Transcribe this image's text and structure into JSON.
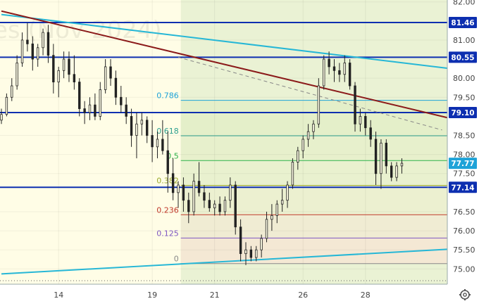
{
  "chart_data": {
    "type": "candlestick",
    "watermark": "es (Nov 2024)",
    "y_ticks": [
      "82.00",
      "81.00",
      "80.00",
      "79.50",
      "78.50",
      "78.00",
      "77.50",
      "76.50",
      "76.00",
      "75.50",
      "75.00"
    ],
    "y_tick_values": [
      82.0,
      81.0,
      80.0,
      79.5,
      78.5,
      78.0,
      77.5,
      76.5,
      76.0,
      75.5,
      75.0
    ],
    "x_ticks": [
      "14",
      "19",
      "21",
      "26",
      "28"
    ],
    "x_tick_index": [
      11,
      29,
      41,
      58,
      70
    ],
    "index_range": [
      0,
      81
    ],
    "ylim": [
      74.6,
      82.05
    ],
    "price_badges": [
      {
        "label": "81.46",
        "value": 81.46,
        "color": "#0d2fb0"
      },
      {
        "label": "80.55",
        "value": 80.55,
        "color": "#0d2fb0"
      },
      {
        "label": "79.10",
        "value": 79.1,
        "color": "#0d2fb0"
      },
      {
        "label": "77.77",
        "value": 77.77,
        "color": "#1ea3d8"
      },
      {
        "label": "77.14",
        "value": 77.14,
        "color": "#0d2fb0"
      }
    ],
    "fibonacci": {
      "levels": [
        {
          "label": "0.786",
          "value": 79.42,
          "color": "#1ea3d8"
        },
        {
          "label": "0.618",
          "value": 78.49,
          "color": "#2e9f8f"
        },
        {
          "label": "0.5",
          "value": 77.84,
          "color": "#2db34a"
        },
        {
          "label": "0.382",
          "value": 77.19,
          "color": "#9aa82a"
        },
        {
          "label": "0.236",
          "value": 76.42,
          "color": "#c0392b"
        },
        {
          "label": "0.125",
          "value": 75.81,
          "color": "#7e57c2"
        },
        {
          "label": "0",
          "value": 75.14,
          "color": "#888888"
        }
      ],
      "start_index": 34.5
    },
    "horizontal_lines": [
      81.46,
      80.55,
      79.1,
      77.14
    ],
    "trendlines": [
      {
        "name": "cyan-upper",
        "color": "#26b7d6",
        "points": [
          [
            0,
            81.67
          ],
          [
            81,
            80.34
          ]
        ]
      },
      {
        "name": "cyan-lower",
        "color": "#26b7d6",
        "points": [
          [
            0,
            74.87
          ],
          [
            81,
            75.48
          ]
        ]
      },
      {
        "name": "resistance",
        "color": "#8b1a1a",
        "points": [
          [
            0,
            81.76
          ],
          [
            81,
            79.12
          ]
        ]
      },
      {
        "name": "dashed-extension",
        "color": "#888888",
        "dashed": true,
        "points": [
          [
            34,
            80.55
          ],
          [
            80,
            78.82
          ]
        ]
      }
    ],
    "candles": [
      [
        78.9,
        79.2,
        78.8,
        79.05
      ],
      [
        79.05,
        79.6,
        79.0,
        79.5
      ],
      [
        79.5,
        80.0,
        79.4,
        79.8
      ],
      [
        79.8,
        80.6,
        79.7,
        80.4
      ],
      [
        80.4,
        81.2,
        80.3,
        81.0
      ],
      [
        81.0,
        81.45,
        80.7,
        80.9
      ],
      [
        80.9,
        81.1,
        80.2,
        80.5
      ],
      [
        80.5,
        80.9,
        80.3,
        80.8
      ],
      [
        80.8,
        81.3,
        80.6,
        81.2
      ],
      [
        81.2,
        81.4,
        80.4,
        80.6
      ],
      [
        80.6,
        80.9,
        79.6,
        79.9
      ],
      [
        79.9,
        80.3,
        79.5,
        80.2
      ],
      [
        80.2,
        80.7,
        80.0,
        80.5
      ],
      [
        80.5,
        80.7,
        79.9,
        80.1
      ],
      [
        80.1,
        80.6,
        79.7,
        79.9
      ],
      [
        79.9,
        80.0,
        79.0,
        79.2
      ],
      [
        79.2,
        79.4,
        78.8,
        79.1
      ],
      [
        79.1,
        79.5,
        78.9,
        79.3
      ],
      [
        79.3,
        79.6,
        78.9,
        79.0
      ],
      [
        79.0,
        79.9,
        78.9,
        79.7
      ],
      [
        79.7,
        80.5,
        79.6,
        80.3
      ],
      [
        80.3,
        80.5,
        79.8,
        80.0
      ],
      [
        80.0,
        80.2,
        79.3,
        79.5
      ],
      [
        79.5,
        79.8,
        79.1,
        79.3
      ],
      [
        79.3,
        79.5,
        78.8,
        79.0
      ],
      [
        79.0,
        79.2,
        78.2,
        78.5
      ],
      [
        78.5,
        79.1,
        77.9,
        78.8
      ],
      [
        78.8,
        79.1,
        78.5,
        78.9
      ],
      [
        78.9,
        79.0,
        78.3,
        78.5
      ],
      [
        78.5,
        78.9,
        77.8,
        78.2
      ],
      [
        78.2,
        78.6,
        77.9,
        78.4
      ],
      [
        78.4,
        78.9,
        78.0,
        78.1
      ],
      [
        78.1,
        78.6,
        77.0,
        77.5
      ],
      [
        77.5,
        77.9,
        76.8,
        77.0
      ],
      [
        77.0,
        77.3,
        76.6,
        77.2
      ],
      [
        77.2,
        77.4,
        76.5,
        76.8
      ],
      [
        76.8,
        77.0,
        76.2,
        76.5
      ],
      [
        76.5,
        77.5,
        76.4,
        77.3
      ],
      [
        77.3,
        77.8,
        76.9,
        77.0
      ],
      [
        77.0,
        77.2,
        76.6,
        76.8
      ],
      [
        76.8,
        77.0,
        76.5,
        76.6
      ],
      [
        76.6,
        76.8,
        76.4,
        76.7
      ],
      [
        76.7,
        76.9,
        76.4,
        76.5
      ],
      [
        76.5,
        76.9,
        76.4,
        76.8
      ],
      [
        76.8,
        77.4,
        76.6,
        77.2
      ],
      [
        77.2,
        77.3,
        75.9,
        76.1
      ],
      [
        76.1,
        76.3,
        75.2,
        75.4
      ],
      [
        75.4,
        75.7,
        75.1,
        75.5
      ],
      [
        75.5,
        75.6,
        75.2,
        75.3
      ],
      [
        75.3,
        75.6,
        75.2,
        75.5
      ],
      [
        75.5,
        75.9,
        75.3,
        75.8
      ],
      [
        75.8,
        76.5,
        75.7,
        76.3
      ],
      [
        76.3,
        76.7,
        76.0,
        76.4
      ],
      [
        76.4,
        76.8,
        76.2,
        76.7
      ],
      [
        76.7,
        77.1,
        76.5,
        76.8
      ],
      [
        76.8,
        77.3,
        76.6,
        77.2
      ],
      [
        77.2,
        77.9,
        77.1,
        77.8
      ],
      [
        77.8,
        78.2,
        77.6,
        78.1
      ],
      [
        78.1,
        78.5,
        77.9,
        78.4
      ],
      [
        78.4,
        78.8,
        78.2,
        78.6
      ],
      [
        78.6,
        78.9,
        78.4,
        78.8
      ],
      [
        78.8,
        80.0,
        78.7,
        79.8
      ],
      [
        79.8,
        80.6,
        79.7,
        80.5
      ],
      [
        80.5,
        80.7,
        80.1,
        80.3
      ],
      [
        80.3,
        80.5,
        79.9,
        80.2
      ],
      [
        80.2,
        80.4,
        79.9,
        80.1
      ],
      [
        80.1,
        80.6,
        79.9,
        80.4
      ],
      [
        80.4,
        80.5,
        79.7,
        79.8
      ],
      [
        79.8,
        79.9,
        78.6,
        78.8
      ],
      [
        78.8,
        79.2,
        78.6,
        79.0
      ],
      [
        79.0,
        79.1,
        78.5,
        78.7
      ],
      [
        78.7,
        78.9,
        78.2,
        78.4
      ],
      [
        78.4,
        78.6,
        77.2,
        77.5
      ],
      [
        77.5,
        78.4,
        77.1,
        78.3
      ],
      [
        78.3,
        78.4,
        77.5,
        77.7
      ],
      [
        77.7,
        77.8,
        77.3,
        77.4
      ],
      [
        77.4,
        77.8,
        77.3,
        77.7
      ],
      [
        77.7,
        77.9,
        77.5,
        77.77
      ]
    ]
  }
}
